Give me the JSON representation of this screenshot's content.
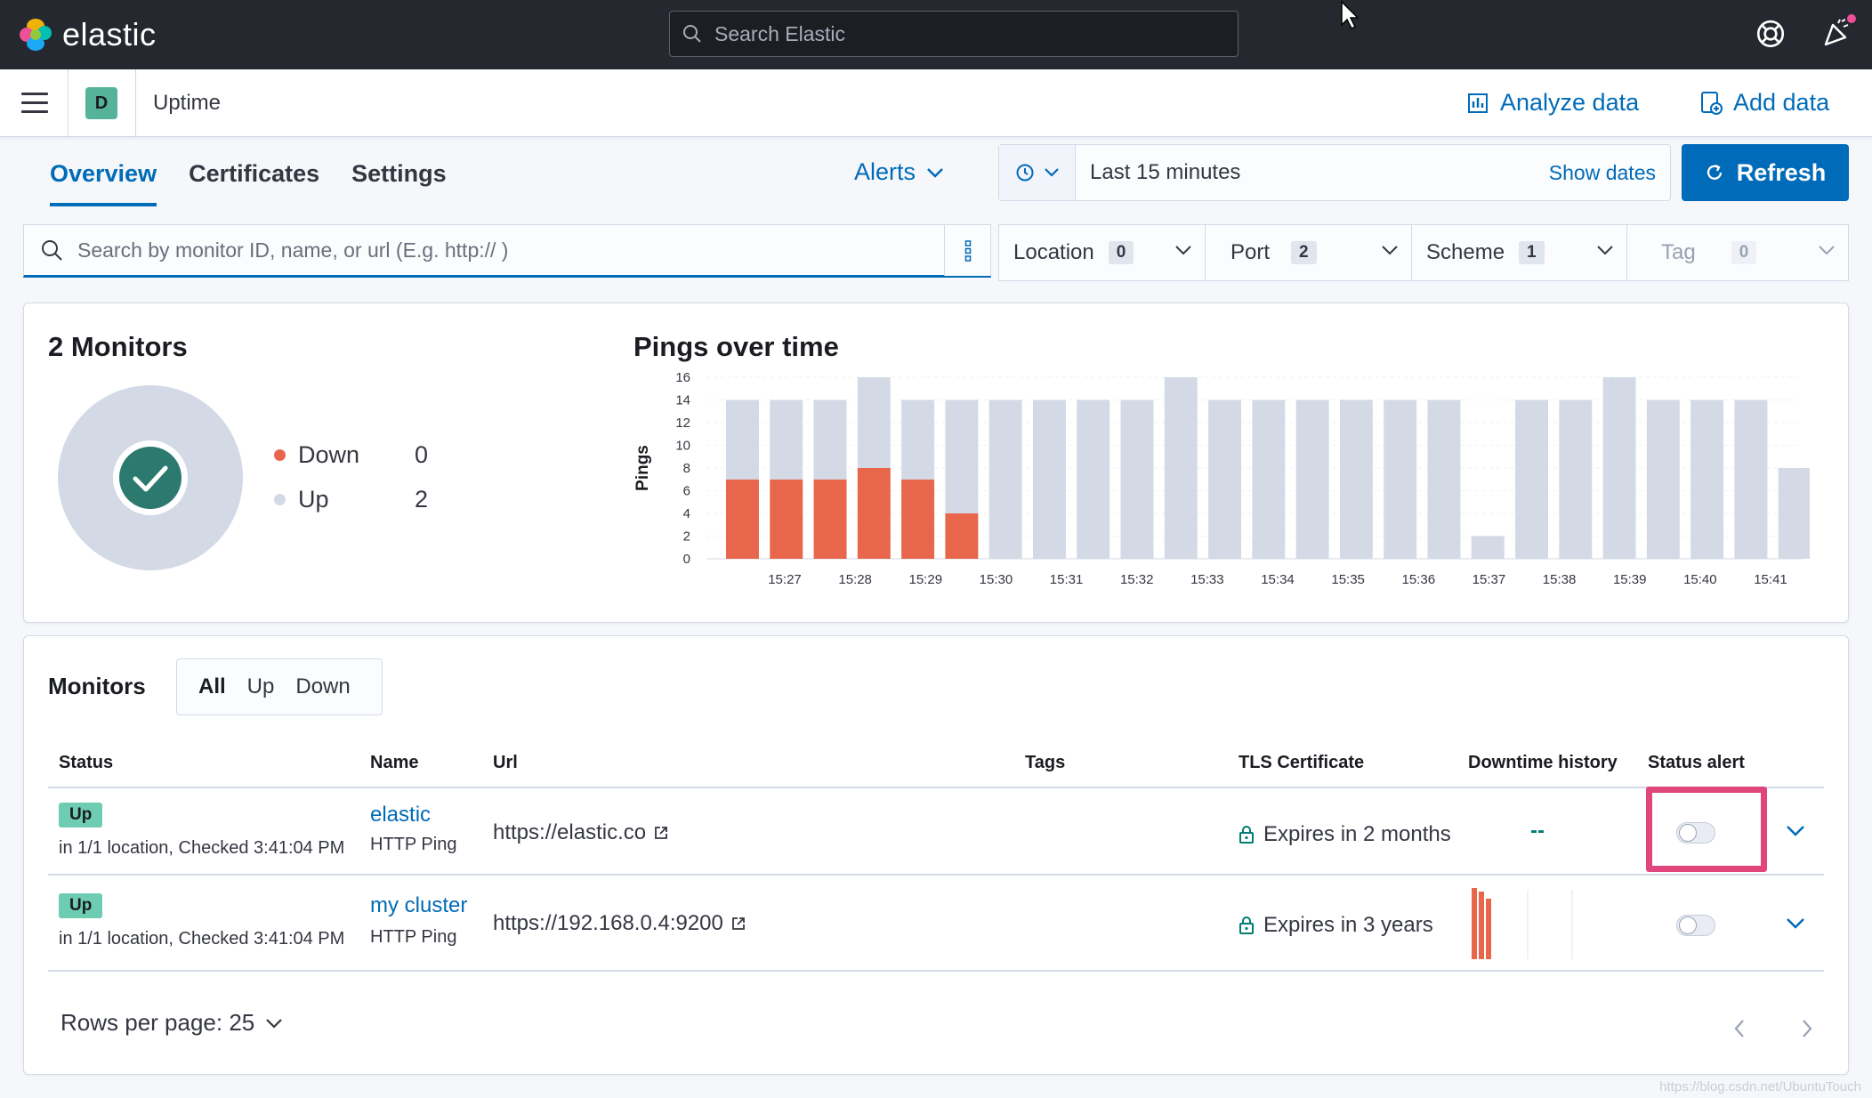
{
  "header": {
    "logo_text": "elastic",
    "search_placeholder": "Search Elastic"
  },
  "subbar": {
    "space_initial": "D",
    "app_title": "Uptime",
    "analyze_label": "Analyze data",
    "add_data_label": "Add data"
  },
  "tabs": [
    {
      "label": "Overview",
      "active": true
    },
    {
      "label": "Certificates",
      "active": false
    },
    {
      "label": "Settings",
      "active": false
    }
  ],
  "alerts_label": "Alerts",
  "datepicker": {
    "range_label": "Last 15 minutes",
    "show_dates_label": "Show dates",
    "refresh_label": "Refresh"
  },
  "search": {
    "placeholder": "Search by monitor ID, name, or url (E.g. http:// )"
  },
  "filters": [
    {
      "label": "Location",
      "count": "0"
    },
    {
      "label": "Port",
      "count": "2"
    },
    {
      "label": "Scheme",
      "count": "1"
    },
    {
      "label": "Tag",
      "count": "0"
    }
  ],
  "summary": {
    "title": "2 Monitors",
    "down_label": "Down",
    "down_count": "0",
    "up_label": "Up",
    "up_count": "2"
  },
  "chart_data": {
    "type": "bar",
    "title": "Pings over time",
    "ylabel": "Pings",
    "xlabel": "",
    "ylim": [
      0,
      16
    ],
    "y_ticks": [
      "0",
      "2",
      "4",
      "6",
      "8",
      "10",
      "12",
      "14",
      "16"
    ],
    "x_tick_labels": [
      "15:27",
      "15:28",
      "15:29",
      "15:30",
      "15:31",
      "15:32",
      "15:33",
      "15:34",
      "15:35",
      "15:36",
      "15:37",
      "15:38",
      "15:39",
      "15:40",
      "15:41"
    ],
    "grid": true,
    "stacked": true,
    "series": [
      {
        "name": "Down",
        "color": "#e7664c",
        "values": [
          7,
          7,
          7,
          8,
          7,
          4,
          0,
          0,
          0,
          0,
          0,
          0,
          0,
          0,
          0,
          0,
          0,
          0,
          0,
          0,
          0,
          0,
          0,
          0,
          0
        ]
      },
      {
        "name": "Up",
        "color": "#d3dae6",
        "values": [
          7,
          7,
          7,
          8,
          7,
          10,
          14,
          14,
          14,
          14,
          16,
          14,
          14,
          14,
          14,
          14,
          14,
          2,
          14,
          14,
          16,
          14,
          14,
          14,
          8
        ]
      }
    ]
  },
  "monitors": {
    "title": "Monitors",
    "segments": [
      "All",
      "Up",
      "Down"
    ],
    "columns": [
      "Status",
      "Name",
      "Url",
      "Tags",
      "TLS Certificate",
      "Downtime history",
      "Status alert"
    ],
    "rows": [
      {
        "status": "Up",
        "status_detail": "in 1/1 location, Checked 3:41:04 PM",
        "name": "elastic",
        "type": "HTTP Ping",
        "url": "https://elastic.co",
        "tls": "Expires in 2 months",
        "downtime": "--"
      },
      {
        "status": "Up",
        "status_detail": "in 1/1 location, Checked 3:41:04 PM",
        "name": "my cluster",
        "type": "HTTP Ping",
        "url": "https://192.168.0.4:9200",
        "tls": "Expires in 3 years",
        "downtime": ""
      }
    ],
    "rows_per_page": "Rows per page: 25"
  },
  "watermark": "https://blog.csdn.net/UbuntuTouch"
}
